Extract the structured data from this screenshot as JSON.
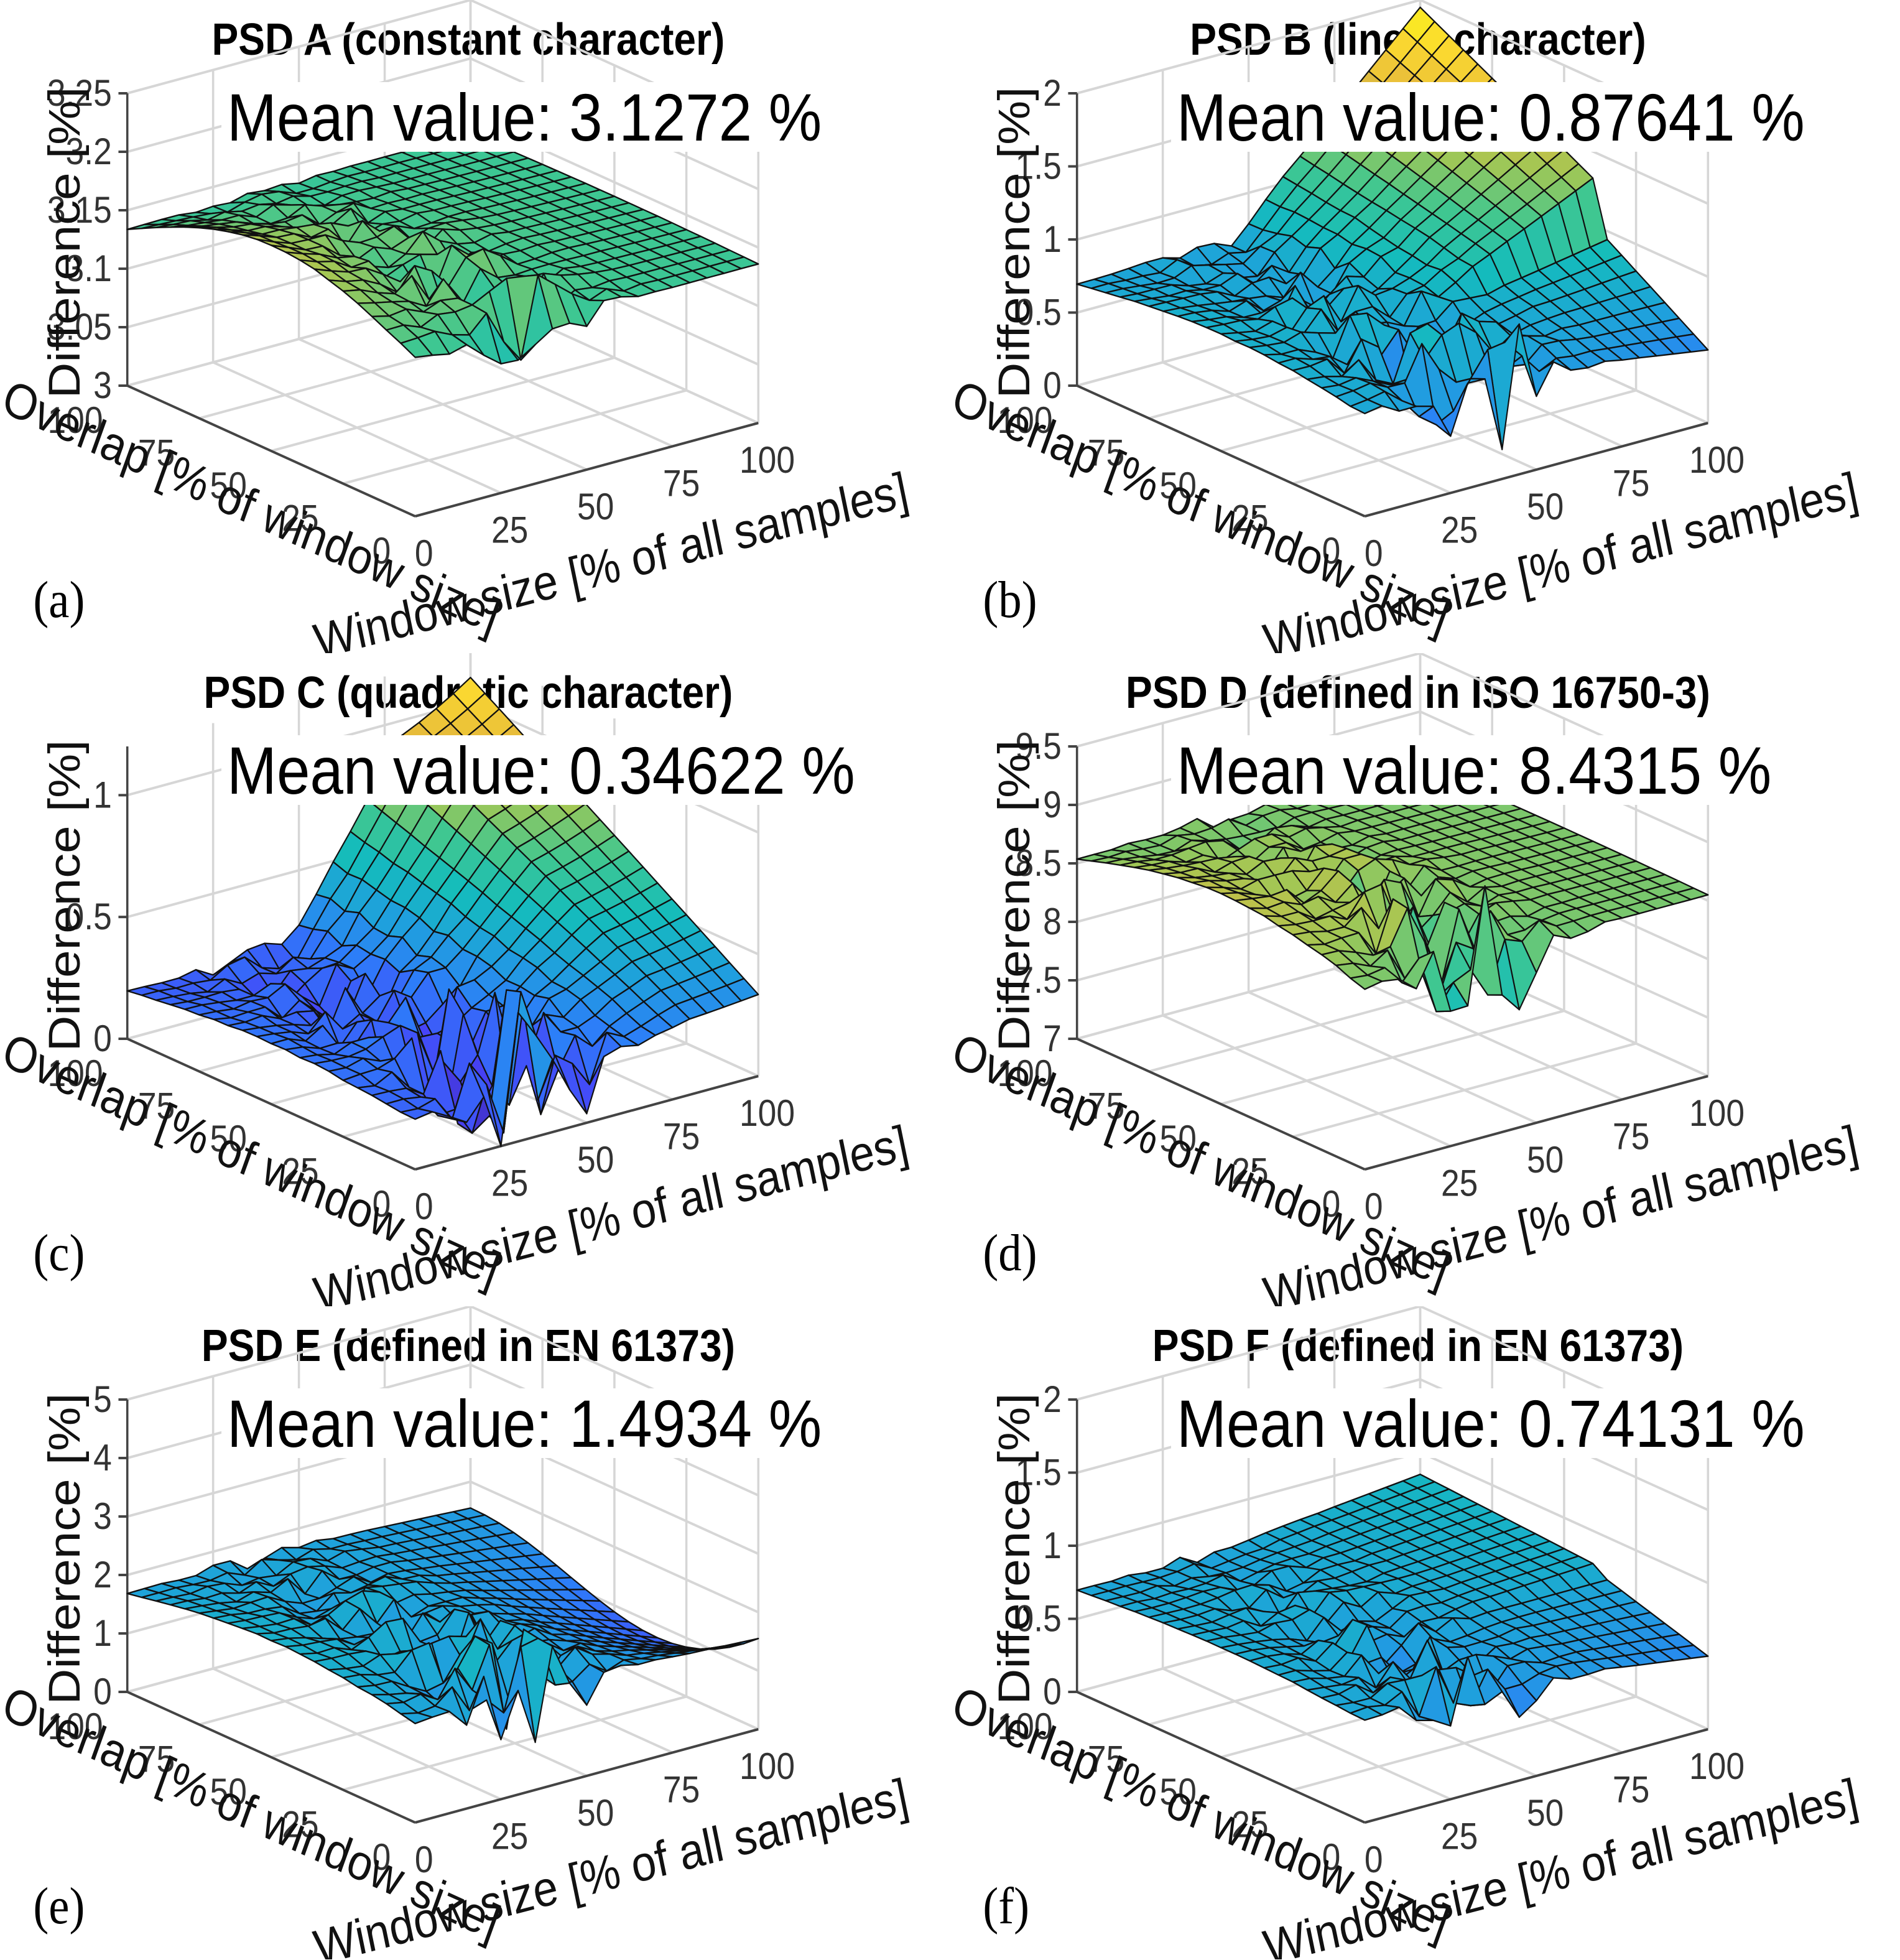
{
  "chart_data": [
    {
      "panel": "(a)",
      "type": "surface",
      "title": "PSD A (constant character)",
      "annotation": "Mean value: 3.1272 %",
      "xlabel": "Window size [% of all samples]",
      "ylabel": "Overlap [% of window size]",
      "zlabel": "Difference [%]",
      "xticks": [
        "0",
        "25",
        "50",
        "75",
        "100"
      ],
      "yticks": [
        "0",
        "25",
        "50",
        "75",
        "100"
      ],
      "zlim": [
        3,
        3.25
      ],
      "zticks": [
        "3",
        "3.05",
        "3.1",
        "3.15",
        "3.2",
        "3.25"
      ],
      "grid": true,
      "colormap": "parula",
      "profile": {
        "base": 3.136,
        "plateau": 3.136,
        "ramp_start": 0.5,
        "ramp_shape": "flat",
        "edge_bump": 0.04,
        "noise": 0.045,
        "noise_floor": 3.0
      }
    },
    {
      "panel": "(b)",
      "type": "surface",
      "title": "PSD B (linear character)",
      "annotation": "Mean value: 0.87641 %",
      "xlabel": "Window size [% of all samples]",
      "ylabel": "Overlap [% of window size]",
      "zlabel": "Difference [%]",
      "xticks": [
        "0",
        "25",
        "50",
        "75",
        "100"
      ],
      "yticks": [
        "0",
        "25",
        "50",
        "75",
        "100"
      ],
      "zlim": [
        0,
        2
      ],
      "zticks": [
        "0",
        "0.5",
        "1",
        "1.5",
        "2"
      ],
      "grid": true,
      "colormap": "parula",
      "profile": {
        "base": 0.7,
        "plateau": 1.95,
        "ramp_start": 0.45,
        "ramp_shape": "linear",
        "edge_bump": 0.1,
        "noise": 0.55,
        "noise_floor": 0.05
      }
    },
    {
      "panel": "(c)",
      "type": "surface",
      "title": "PSD C (quadratic character)",
      "annotation": "Mean value: 0.34622 %",
      "xlabel": "Window size [% of all samples]",
      "ylabel": "Overlap [% of window size]",
      "zlabel": "Difference [%]",
      "xticks": [
        "0",
        "25",
        "50",
        "75",
        "100"
      ],
      "yticks": [
        "0",
        "25",
        "50",
        "75",
        "100"
      ],
      "zlim": [
        0,
        1.2
      ],
      "zticks": [
        "0",
        "0.5",
        "1"
      ],
      "grid": true,
      "colormap": "parula",
      "profile": {
        "base": 0.2,
        "plateau": 1.1,
        "ramp_start": 0.45,
        "ramp_shape": "quadratic",
        "edge_bump": 0.05,
        "noise": 0.5,
        "noise_floor": 0.0
      }
    },
    {
      "panel": "(d)",
      "type": "surface",
      "title": "PSD D (defined in ISO 16750-3)",
      "annotation": "Mean value: 8.4315 %",
      "xlabel": "Window size [% of all samples]",
      "ylabel": "Overlap [% of window size]",
      "zlabel": "Difference [%]",
      "xticks": [
        "0",
        "25",
        "50",
        "75",
        "100"
      ],
      "yticks": [
        "0",
        "25",
        "50",
        "75",
        "100"
      ],
      "zlim": [
        7,
        9.5
      ],
      "zticks": [
        "7",
        "7.5",
        "8",
        "8.5",
        "9",
        "9.5"
      ],
      "grid": true,
      "colormap": "parula",
      "profile": {
        "base": 8.55,
        "plateau": 8.5,
        "ramp_start": 0.5,
        "ramp_shape": "flat",
        "edge_bump": 0.25,
        "noise": 0.7,
        "noise_floor": 7.0
      }
    },
    {
      "panel": "(e)",
      "type": "surface",
      "title": "PSD E (defined in EN 61373)",
      "annotation": "Mean value: 1.4934 %",
      "xlabel": "Window size [% of all samples]",
      "ylabel": "Overlap [% of window size]",
      "zlabel": "Difference [%]",
      "xticks": [
        "0",
        "25",
        "50",
        "75",
        "100"
      ],
      "yticks": [
        "0",
        "25",
        "50",
        "75",
        "100"
      ],
      "zlim": [
        0,
        5
      ],
      "zticks": [
        "0",
        "1",
        "2",
        "3",
        "4",
        "5"
      ],
      "grid": true,
      "colormap": "parula",
      "profile": {
        "base": 1.7,
        "plateau": 1.2,
        "ramp_start": 0.55,
        "ramp_shape": "dip",
        "edge_bump": 0.3,
        "noise": 1.2,
        "noise_floor": 0.0
      }
    },
    {
      "panel": "(f)",
      "type": "surface",
      "title": "PSD F (defined in EN 61373)",
      "annotation": "Mean value: 0.74131 %",
      "xlabel": "Window size [% of all samples]",
      "ylabel": "Overlap [% of window size]",
      "zlabel": "Difference [%]",
      "xticks": [
        "0",
        "25",
        "50",
        "75",
        "100"
      ],
      "yticks": [
        "0",
        "25",
        "50",
        "75",
        "100"
      ],
      "zlim": [
        0,
        2
      ],
      "zticks": [
        "0",
        "0.5",
        "1",
        "1.5",
        "2"
      ],
      "grid": true,
      "colormap": "parula",
      "profile": {
        "base": 0.7,
        "plateau": 0.85,
        "ramp_start": 0.4,
        "ramp_shape": "linear",
        "edge_bump": 0.05,
        "noise": 0.35,
        "noise_floor": 0.05
      }
    }
  ],
  "colormap_stops": [
    "#3e26a8",
    "#4743f8",
    "#2d7df9",
    "#1fa1dc",
    "#14bcbc",
    "#3fc791",
    "#a1c755",
    "#e6ba3b",
    "#fbd930",
    "#f9fb15"
  ]
}
